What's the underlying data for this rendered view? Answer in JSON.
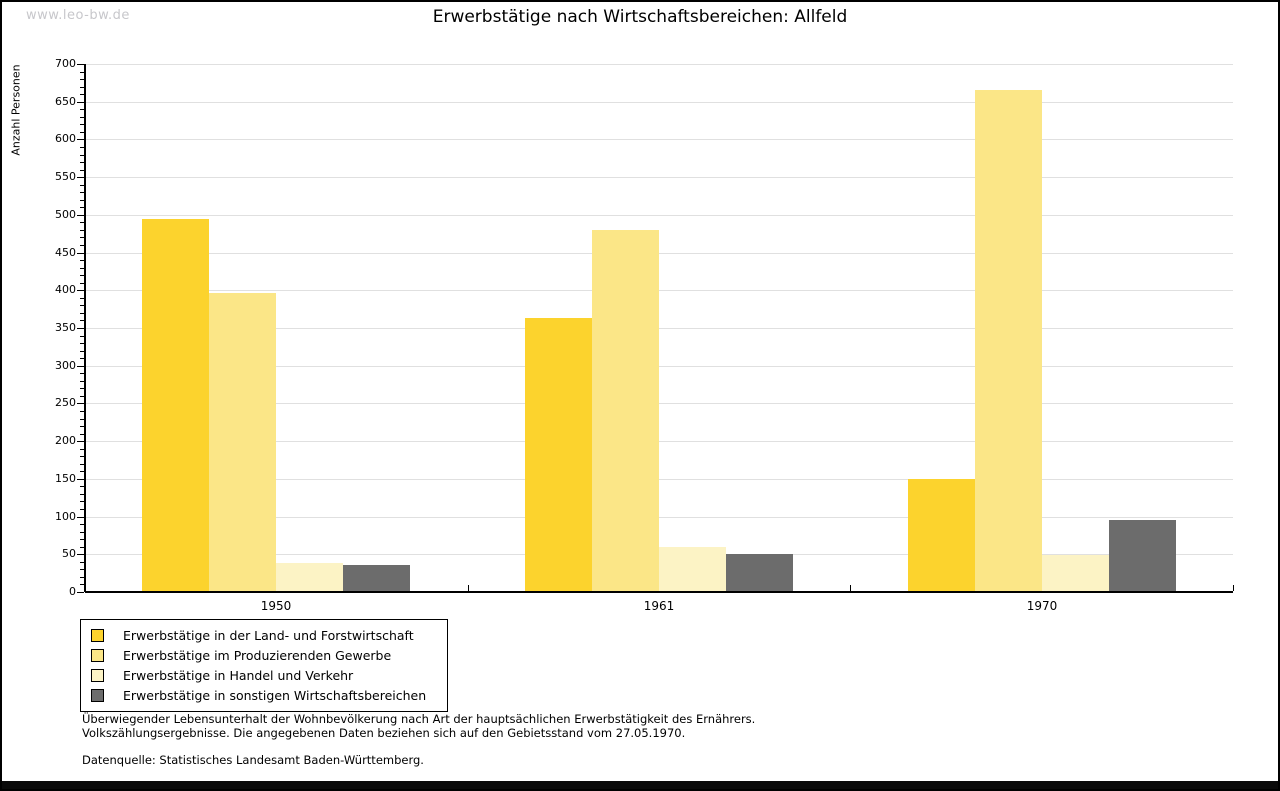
{
  "watermark": "www.leo-bw.de",
  "header": {
    "title": "Erwerbstätige nach Wirtschaftsbereichen: Allfeld"
  },
  "chart_data": {
    "type": "bar",
    "title": "Erwerbstätige nach Wirtschaftsbereichen: Allfeld",
    "xlabel": "",
    "ylabel": "Anzahl Personen",
    "ylim": [
      0,
      700
    ],
    "ytick_step": 50,
    "y_minor_step": 10,
    "grid": "horizontal",
    "legend_position": "bottom-left",
    "categories": [
      "1950",
      "1961",
      "1970"
    ],
    "series": [
      {
        "name": "Erwerbstätige in der Land- und Forstwirtschaft",
        "color": "#FCD32D",
        "values": [
          495,
          363,
          150
        ]
      },
      {
        "name": "Erwerbstätige im Produzierenden Gewerbe",
        "color": "#FBE687",
        "values": [
          397,
          480,
          665
        ]
      },
      {
        "name": "Erwerbstätige in Handel und Verkehr",
        "color": "#FCF3C5",
        "values": [
          38,
          60,
          49
        ]
      },
      {
        "name": "Erwerbstätige in sonstigen Wirtschaftsbereichen",
        "color": "#6C6C6C",
        "values": [
          36,
          51,
          95
        ]
      }
    ]
  },
  "footnotes": {
    "line1": "Überwiegender Lebensunterhalt der Wohnbevölkerung nach Art der hauptsächlichen Erwerbstätigkeit des Ernährers.",
    "line2": "Volkszählungsergebnisse. Die angegebenen Daten beziehen sich auf den Gebietsstand vom 27.05.1970.",
    "source": "Datenquelle: Statistisches Landesamt Baden-Württemberg."
  }
}
